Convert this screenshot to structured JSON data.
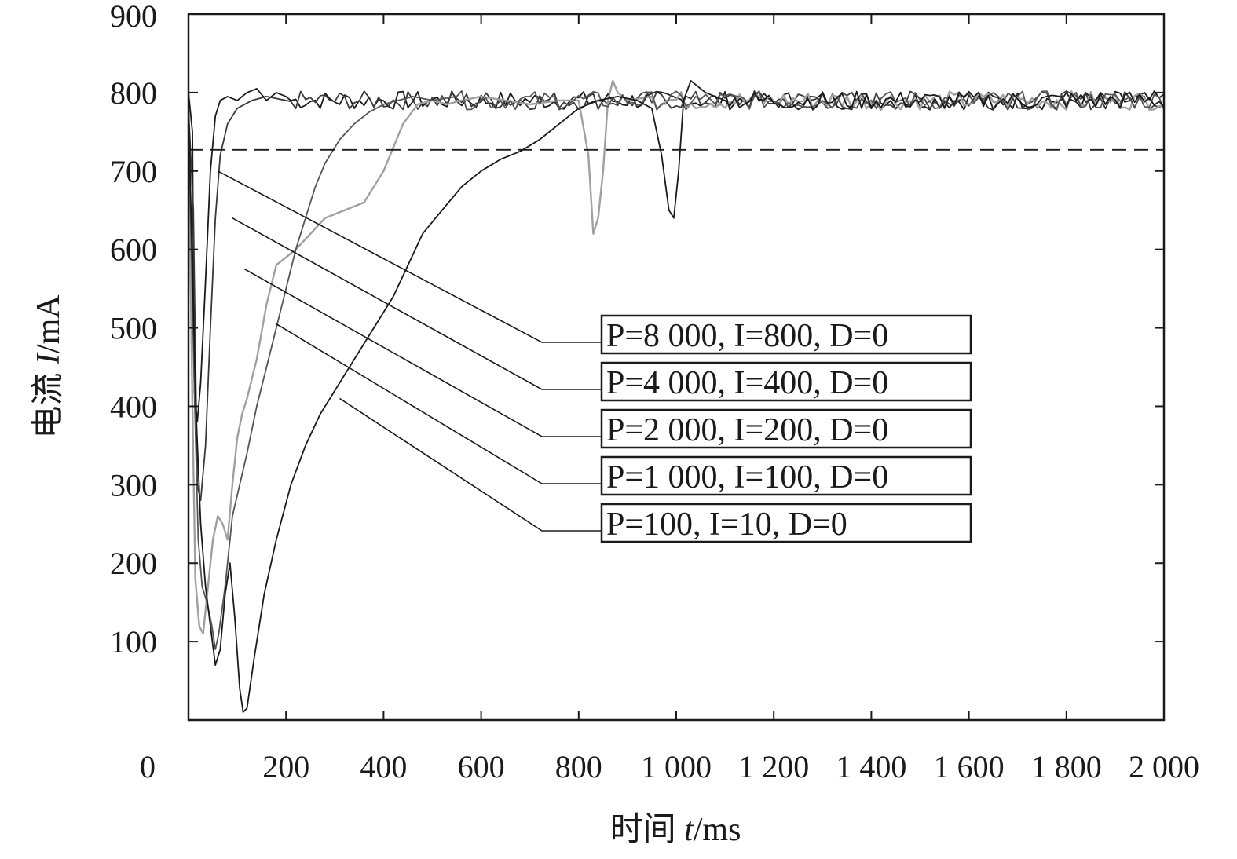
{
  "chart_data": {
    "type": "line",
    "xlabel": {
      "prefix": "时间 ",
      "var": "t",
      "unit": "/ms"
    },
    "ylabel": {
      "prefix": "电流 ",
      "var": "I",
      "unit": "/mA"
    },
    "xlim": [
      0,
      2000
    ],
    "ylim": [
      0,
      900
    ],
    "x_ticks": [
      0,
      200,
      400,
      600,
      800,
      1000,
      1200,
      1400,
      1600,
      1800,
      2000
    ],
    "x_tick_labels": [
      "0",
      "200",
      "400",
      "600",
      "800",
      "1 000",
      "1 200",
      "1 400",
      "1 600",
      "1 800",
      "2 000"
    ],
    "y_ticks": [
      100,
      200,
      300,
      400,
      500,
      600,
      700,
      800,
      900
    ],
    "y_tick_labels": [
      "100",
      "200",
      "300",
      "400",
      "500",
      "600",
      "700",
      "800",
      "900"
    ],
    "grid": false,
    "reference_line": {
      "y": 727,
      "style": "dashed"
    },
    "legend_placement": "center-right",
    "colors": {
      "black": "#1a1a1a",
      "dark_gray": "#3a3a3a",
      "gray": "#808080",
      "light_gray": "#a0a0a0",
      "mid": "#555555"
    },
    "series": [
      {
        "name": "P=8 000, I=800, D=0",
        "color": "#1a1a1a",
        "anchor": [
          60,
          700
        ],
        "points": [
          [
            0,
            800
          ],
          [
            8,
            750
          ],
          [
            12,
            420
          ],
          [
            18,
            380
          ],
          [
            25,
            430
          ],
          [
            35,
            560
          ],
          [
            45,
            700
          ],
          [
            55,
            770
          ],
          [
            65,
            790
          ],
          [
            80,
            795
          ],
          [
            100,
            790
          ],
          [
            120,
            800
          ],
          [
            140,
            805
          ],
          [
            160,
            790
          ],
          [
            180,
            800
          ],
          [
            200,
            795
          ]
        ]
      },
      {
        "name": "P=4 000, I=400, D=0",
        "color": "#3a3a3a",
        "anchor": [
          90,
          640
        ],
        "points": [
          [
            0,
            780
          ],
          [
            10,
            650
          ],
          [
            18,
            300
          ],
          [
            25,
            280
          ],
          [
            35,
            350
          ],
          [
            45,
            500
          ],
          [
            55,
            640
          ],
          [
            65,
            720
          ],
          [
            80,
            760
          ],
          [
            100,
            780
          ],
          [
            130,
            790
          ],
          [
            160,
            795
          ],
          [
            200,
            790
          ]
        ]
      },
      {
        "name": "P=2 000, I=200, D=0",
        "color": "#a0a0a0",
        "anchor": [
          115,
          575
        ],
        "points": [
          [
            0,
            760
          ],
          [
            8,
            400
          ],
          [
            14,
            180
          ],
          [
            22,
            120
          ],
          [
            30,
            110
          ],
          [
            40,
            170
          ],
          [
            50,
            230
          ],
          [
            60,
            260
          ],
          [
            70,
            250
          ],
          [
            80,
            230
          ],
          [
            90,
            300
          ],
          [
            100,
            360
          ],
          [
            110,
            390
          ],
          [
            120,
            410
          ],
          [
            140,
            460
          ],
          [
            160,
            530
          ],
          [
            180,
            580
          ],
          [
            200,
            590
          ],
          [
            220,
            600
          ],
          [
            250,
            620
          ],
          [
            280,
            640
          ],
          [
            320,
            650
          ],
          [
            360,
            660
          ],
          [
            380,
            680
          ],
          [
            400,
            700
          ],
          [
            420,
            730
          ],
          [
            440,
            760
          ],
          [
            470,
            785
          ],
          [
            500,
            790
          ],
          [
            530,
            785
          ],
          [
            560,
            790
          ],
          [
            600,
            795
          ],
          [
            650,
            790
          ],
          [
            700,
            785
          ],
          [
            760,
            790
          ],
          [
            800,
            790
          ],
          [
            820,
            720
          ],
          [
            830,
            620
          ],
          [
            840,
            640
          ],
          [
            850,
            700
          ],
          [
            860,
            790
          ],
          [
            870,
            815
          ],
          [
            880,
            800
          ],
          [
            900,
            790
          ],
          [
            950,
            795
          ]
        ]
      },
      {
        "name": "P=1 000, I=100, D=0",
        "color": "#555555",
        "anchor": [
          180,
          505
        ],
        "points": [
          [
            0,
            770
          ],
          [
            12,
            420
          ],
          [
            20,
            230
          ],
          [
            28,
            170
          ],
          [
            38,
            150
          ],
          [
            48,
            120
          ],
          [
            55,
            90
          ],
          [
            62,
            110
          ],
          [
            75,
            170
          ],
          [
            90,
            260
          ],
          [
            105,
            300
          ],
          [
            120,
            340
          ],
          [
            140,
            400
          ],
          [
            160,
            450
          ],
          [
            180,
            500
          ],
          [
            200,
            550
          ],
          [
            220,
            600
          ],
          [
            240,
            640
          ],
          [
            260,
            680
          ],
          [
            280,
            710
          ],
          [
            310,
            740
          ],
          [
            340,
            760
          ],
          [
            370,
            775
          ],
          [
            400,
            785
          ],
          [
            430,
            790
          ],
          [
            460,
            795
          ],
          [
            500,
            790
          ],
          [
            550,
            795
          ]
        ]
      },
      {
        "name": "P=100, I=10, D=0",
        "color": "#1a1a1a",
        "anchor": [
          310,
          410
        ],
        "points": [
          [
            0,
            780
          ],
          [
            15,
            400
          ],
          [
            25,
            250
          ],
          [
            35,
            170
          ],
          [
            45,
            120
          ],
          [
            55,
            70
          ],
          [
            65,
            90
          ],
          [
            75,
            160
          ],
          [
            85,
            200
          ],
          [
            95,
            130
          ],
          [
            105,
            40
          ],
          [
            112,
            10
          ],
          [
            120,
            15
          ],
          [
            135,
            80
          ],
          [
            155,
            160
          ],
          [
            180,
            230
          ],
          [
            210,
            300
          ],
          [
            240,
            350
          ],
          [
            270,
            390
          ],
          [
            300,
            420
          ],
          [
            330,
            450
          ],
          [
            360,
            480
          ],
          [
            390,
            510
          ],
          [
            420,
            540
          ],
          [
            450,
            580
          ],
          [
            480,
            620
          ],
          [
            520,
            650
          ],
          [
            560,
            680
          ],
          [
            600,
            700
          ],
          [
            640,
            715
          ],
          [
            680,
            725
          ],
          [
            720,
            740
          ],
          [
            760,
            760
          ],
          [
            800,
            780
          ],
          [
            840,
            790
          ],
          [
            880,
            795
          ],
          [
            920,
            790
          ],
          [
            950,
            780
          ],
          [
            970,
            720
          ],
          [
            985,
            650
          ],
          [
            995,
            640
          ],
          [
            1005,
            700
          ],
          [
            1015,
            790
          ],
          [
            1030,
            815
          ],
          [
            1060,
            800
          ],
          [
            1100,
            790
          ]
        ]
      }
    ],
    "steady_state": {
      "from": 200,
      "to": 2000,
      "mean": 790,
      "noise": 12
    }
  }
}
